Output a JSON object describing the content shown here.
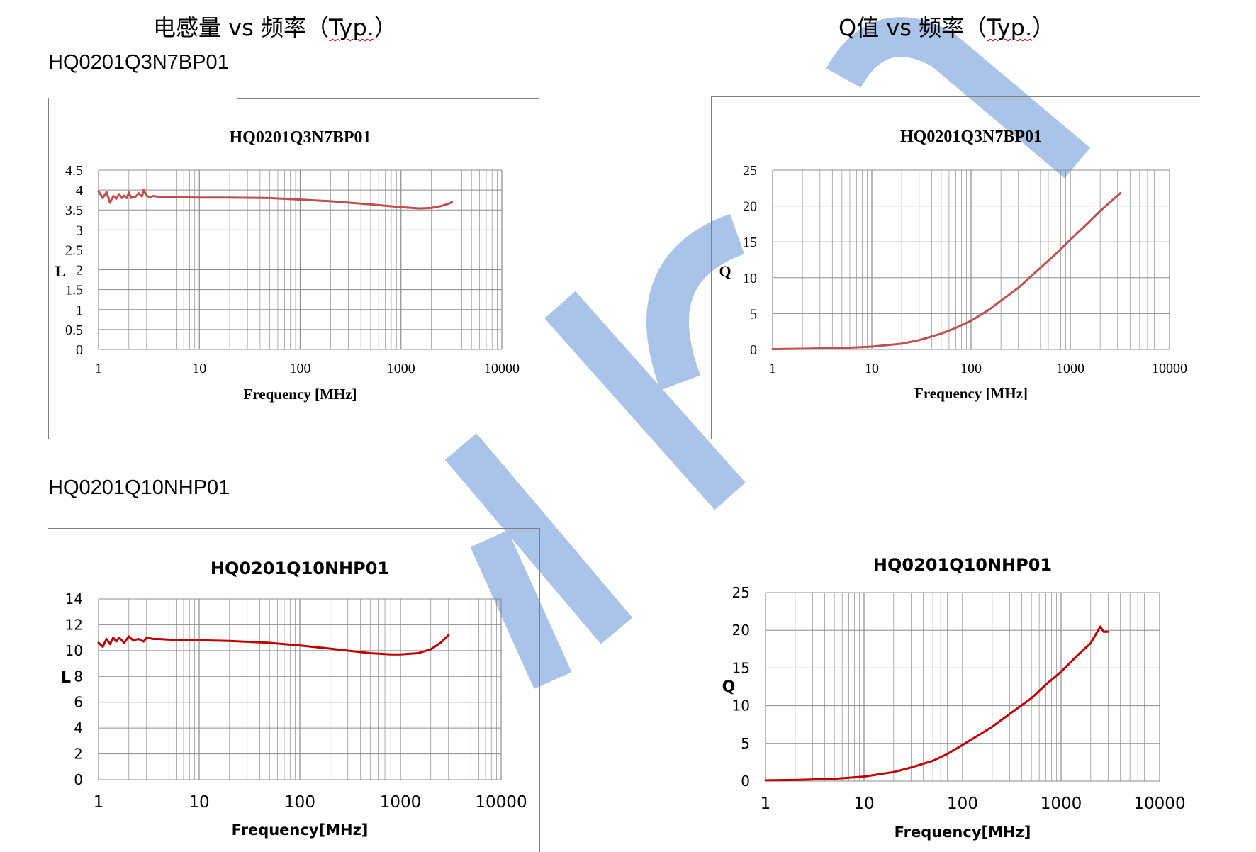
{
  "headings": {
    "left": {
      "prefix": "电感量 vs 频率（",
      "typ": "Typ.",
      "suffix": "）"
    },
    "right": {
      "prefix": "Q值 vs 频率（",
      "typ": "Typ.",
      "suffix": "）"
    }
  },
  "parts": {
    "part1": "HQ0201Q3N7BP01",
    "part2": "HQ0201Q10NHP01"
  },
  "colors": {
    "curve": "#c0504d",
    "curve_dark": "#c00000",
    "grid": "#8c8c8c",
    "watermark": "#a9c4e8"
  },
  "chart_data": [
    {
      "type": "line",
      "title": "HQ0201Q3N7BP01",
      "xlabel": "Frequency [MHz]",
      "ylabel": "L",
      "xscale": "log",
      "xlim": [
        1,
        10000
      ],
      "ylim": [
        0,
        4.5
      ],
      "xticks": [
        "1",
        "10",
        "100",
        "1000",
        "10000"
      ],
      "yticks": [
        "0",
        "0.5",
        "1",
        "1.5",
        "2",
        "2.5",
        "3",
        "3.5",
        "4",
        "4.5"
      ],
      "grid": true,
      "series": [
        {
          "x": [
            1,
            1.1,
            1.2,
            1.3,
            1.4,
            1.5,
            1.6,
            1.7,
            1.8,
            1.9,
            2,
            2.1,
            2.2,
            2.3,
            2.5,
            2.7,
            2.8,
            3,
            3.2,
            3.5,
            4,
            5,
            10,
            20,
            50,
            100,
            200,
            500,
            1000,
            1500,
            2000,
            2500,
            3000,
            3200
          ],
          "y": [
            3.97,
            3.8,
            3.95,
            3.68,
            3.85,
            3.78,
            3.9,
            3.8,
            3.86,
            3.8,
            3.94,
            3.8,
            3.84,
            3.82,
            3.92,
            3.84,
            4.0,
            3.86,
            3.82,
            3.85,
            3.83,
            3.82,
            3.81,
            3.81,
            3.8,
            3.76,
            3.72,
            3.64,
            3.57,
            3.54,
            3.55,
            3.6,
            3.66,
            3.7
          ]
        }
      ]
    },
    {
      "type": "line",
      "title": "HQ0201Q3N7BP01",
      "xlabel": "Frequency [MHz]",
      "ylabel": "Q",
      "xscale": "log",
      "xlim": [
        1,
        10000
      ],
      "ylim": [
        0,
        25
      ],
      "xticks": [
        "1",
        "10",
        "100",
        "1000",
        "10000"
      ],
      "yticks": [
        "0",
        "5",
        "10",
        "15",
        "20",
        "25"
      ],
      "grid": true,
      "series": [
        {
          "x": [
            1,
            2,
            5,
            10,
            20,
            30,
            50,
            70,
            100,
            150,
            200,
            300,
            500,
            700,
            1000,
            1500,
            2000,
            2500,
            3200
          ],
          "y": [
            0.05,
            0.1,
            0.2,
            0.4,
            0.8,
            1.3,
            2.2,
            3.0,
            4.0,
            5.5,
            6.8,
            8.6,
            11.4,
            13.2,
            15.3,
            17.6,
            19.3,
            20.5,
            21.8
          ]
        }
      ]
    },
    {
      "type": "line",
      "title": "HQ0201Q10NHP01",
      "xlabel": "Frequency[MHz]",
      "ylabel": "L",
      "xscale": "log",
      "xlim": [
        1,
        10000
      ],
      "ylim": [
        0,
        14
      ],
      "xticks": [
        "1",
        "10",
        "100",
        "1000",
        "10000"
      ],
      "yticks": [
        "0",
        "2",
        "4",
        "6",
        "8",
        "10",
        "12",
        "14"
      ],
      "grid": true,
      "series": [
        {
          "x": [
            1,
            1.1,
            1.2,
            1.3,
            1.4,
            1.5,
            1.6,
            1.8,
            2,
            2.2,
            2.5,
            2.8,
            3,
            3.5,
            4,
            5,
            10,
            20,
            50,
            100,
            200,
            500,
            800,
            1000,
            1500,
            2000,
            2500,
            3000
          ],
          "y": [
            10.6,
            10.3,
            10.9,
            10.5,
            11.0,
            10.7,
            11.0,
            10.6,
            11.1,
            10.8,
            10.9,
            10.7,
            11.0,
            10.9,
            10.9,
            10.85,
            10.8,
            10.75,
            10.6,
            10.4,
            10.15,
            9.8,
            9.7,
            9.7,
            9.8,
            10.1,
            10.6,
            11.2
          ]
        }
      ]
    },
    {
      "type": "line",
      "title": "HQ0201Q10NHP01",
      "xlabel": "Frequency[MHz]",
      "ylabel": "Q",
      "xscale": "log",
      "xlim": [
        1,
        10000
      ],
      "ylim": [
        0,
        25
      ],
      "xticks": [
        "1",
        "10",
        "100",
        "1000",
        "10000"
      ],
      "yticks": [
        "0",
        "5",
        "10",
        "15",
        "20",
        "25"
      ],
      "grid": true,
      "series": [
        {
          "x": [
            1,
            2,
            5,
            10,
            20,
            30,
            50,
            70,
            100,
            150,
            200,
            300,
            500,
            700,
            1000,
            1500,
            2000,
            2500,
            2700,
            3000
          ],
          "y": [
            0.1,
            0.15,
            0.3,
            0.6,
            1.2,
            1.8,
            2.7,
            3.6,
            4.8,
            6.2,
            7.2,
            8.9,
            11.0,
            12.8,
            14.5,
            16.8,
            18.3,
            20.5,
            19.8,
            19.8
          ]
        }
      ]
    }
  ]
}
